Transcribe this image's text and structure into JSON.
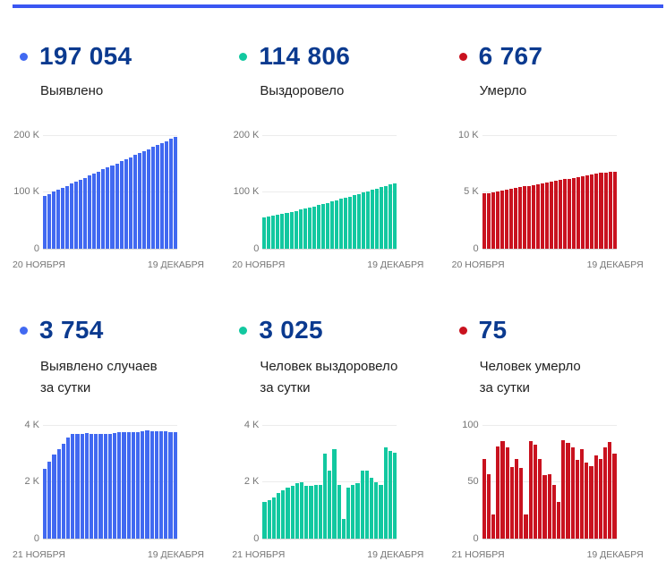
{
  "page": {
    "top_bar_color": "#3A56F2"
  },
  "colors": {
    "blue": "#4169F1",
    "teal": "#12C8A0",
    "red": "#C9121F",
    "number_navy": "#0B3A8F"
  },
  "panels": [
    {
      "value": "197 054",
      "label_line1": "Выявлено",
      "label_line2": "",
      "bullet_color": "#4169F1"
    },
    {
      "value": "114 806",
      "label_line1": "Выздоровело",
      "label_line2": "",
      "bullet_color": "#12C8A0"
    },
    {
      "value": "6 767",
      "label_line1": "Умерло",
      "label_line2": "",
      "bullet_color": "#C9121F"
    },
    {
      "value": "3 754",
      "label_line1": "Выявлено случаев",
      "label_line2": "за сутки",
      "bullet_color": "#4169F1"
    },
    {
      "value": "3 025",
      "label_line1": "Человек выздоровело",
      "label_line2": "за сутки",
      "bullet_color": "#12C8A0"
    },
    {
      "value": "75",
      "label_line1": "Человек умерло",
      "label_line2": "за сутки",
      "bullet_color": "#C9121F"
    }
  ],
  "chart_data": [
    {
      "type": "bar",
      "title": "Выявлено",
      "xlabel": "",
      "ylabel": "",
      "color": "#4169F1",
      "ylim": [
        0,
        200000
      ],
      "grid": true,
      "legend": "none",
      "yticks": [
        "200 K",
        "100 K",
        "0"
      ],
      "x_start_label": "20 НОЯБРЯ",
      "x_end_label": "19 ДЕКАБРЯ",
      "values": [
        93000,
        96600,
        100200,
        103700,
        107300,
        110900,
        114500,
        118100,
        121600,
        125200,
        128800,
        132400,
        136000,
        139500,
        143100,
        146700,
        150300,
        153900,
        157400,
        161000,
        164600,
        168200,
        171800,
        175300,
        178900,
        182500,
        186100,
        189700,
        193300,
        197054
      ]
    },
    {
      "type": "bar",
      "title": "Выздоровело",
      "xlabel": "",
      "ylabel": "",
      "color": "#12C8A0",
      "ylim": [
        0,
        200000
      ],
      "grid": true,
      "legend": "none",
      "yticks": [
        "200 K",
        "100 K",
        "0"
      ],
      "x_start_label": "20 НОЯБРЯ",
      "x_end_label": "19 ДЕКАБРЯ",
      "values": [
        55500,
        56800,
        58200,
        59700,
        61300,
        63000,
        64800,
        66700,
        68600,
        70500,
        72500,
        74500,
        76600,
        78800,
        81000,
        83200,
        85400,
        87600,
        89800,
        92000,
        94300,
        96600,
        99000,
        101400,
        103800,
        106200,
        108600,
        110700,
        112800,
        114806
      ]
    },
    {
      "type": "bar",
      "title": "Умерло",
      "xlabel": "",
      "ylabel": "",
      "color": "#C9121F",
      "ylim": [
        0,
        10000
      ],
      "grid": true,
      "legend": "none",
      "yticks": [
        "10 K",
        "5 K",
        "0"
      ],
      "x_start_label": "20 НОЯБРЯ",
      "x_end_label": "19 ДЕКАБРЯ",
      "values": [
        4850,
        4920,
        4990,
        5060,
        5130,
        5200,
        5270,
        5340,
        5410,
        5480,
        5550,
        5620,
        5690,
        5760,
        5830,
        5900,
        5970,
        6040,
        6110,
        6180,
        6250,
        6320,
        6390,
        6460,
        6530,
        6600,
        6660,
        6700,
        6735,
        6767
      ]
    },
    {
      "type": "bar",
      "title": "Выявлено случаев за сутки",
      "xlabel": "",
      "ylabel": "",
      "color": "#4169F1",
      "ylim": [
        0,
        4000
      ],
      "grid": true,
      "legend": "none",
      "yticks": [
        "4 K",
        "2 K",
        "0"
      ],
      "x_start_label": "21 НОЯБРЯ",
      "x_end_label": "19 ДЕКАБРЯ",
      "values": [
        2450,
        2700,
        2950,
        3150,
        3350,
        3550,
        3680,
        3700,
        3700,
        3720,
        3700,
        3700,
        3680,
        3700,
        3700,
        3720,
        3740,
        3760,
        3750,
        3740,
        3760,
        3780,
        3800,
        3780,
        3780,
        3780,
        3770,
        3760,
        3754
      ]
    },
    {
      "type": "bar",
      "title": "Человек выздоровело за сутки",
      "xlabel": "",
      "ylabel": "",
      "color": "#12C8A0",
      "ylim": [
        0,
        4000
      ],
      "grid": true,
      "legend": "none",
      "yticks": [
        "4 K",
        "2 K",
        "0"
      ],
      "x_start_label": "21 НОЯБРЯ",
      "x_end_label": "19 ДЕКАБРЯ",
      "values": [
        1300,
        1350,
        1450,
        1600,
        1700,
        1800,
        1850,
        1950,
        2000,
        1850,
        1850,
        1900,
        1900,
        3000,
        2400,
        3150,
        1900,
        700,
        1800,
        1900,
        1950,
        2400,
        2380,
        2150,
        2000,
        1900,
        3200,
        3100,
        3025
      ]
    },
    {
      "type": "bar",
      "title": "Человек умерло за сутки",
      "xlabel": "",
      "ylabel": "",
      "color": "#C9121F",
      "ylim": [
        0,
        100
      ],
      "grid": true,
      "legend": "none",
      "yticks": [
        "100",
        "50",
        "0"
      ],
      "x_start_label": "21 НОЯБРЯ",
      "x_end_label": "19 ДЕКАБРЯ",
      "values": [
        70,
        57,
        21,
        81,
        86,
        80,
        63,
        70,
        62,
        21,
        86,
        83,
        70,
        56,
        57,
        47,
        32,
        87,
        84,
        80,
        69,
        79,
        67,
        64,
        73,
        70,
        80,
        85,
        75
      ]
    }
  ]
}
